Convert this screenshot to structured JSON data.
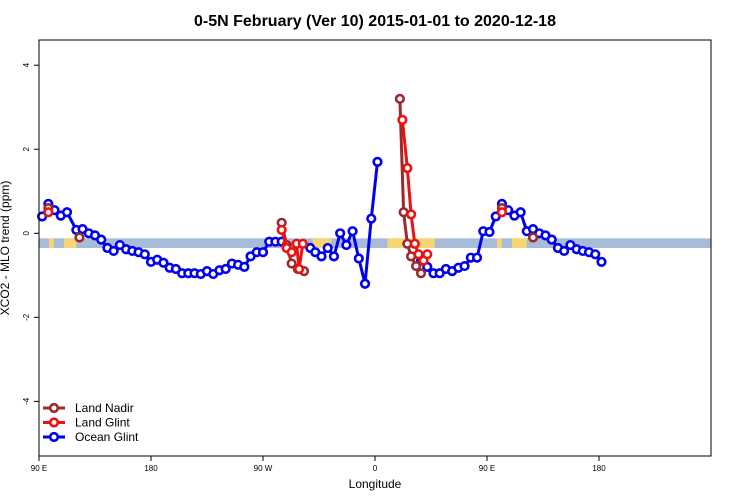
{
  "chart_data": {
    "type": "line",
    "title": "0-5N February (Ver 10)   2015-01-01 to 2020-12-18",
    "xlabel": "Longitude",
    "ylabel": "XCO2 - MLO trend (ppm)",
    "xlim": [
      0,
      540
    ],
    "ylim": [
      -5.3,
      4.6
    ],
    "x_ticks": [
      {
        "value": 0,
        "label": "90 E"
      },
      {
        "value": 90,
        "label": "180"
      },
      {
        "value": 180,
        "label": "90 W"
      },
      {
        "value": 270,
        "label": "0"
      },
      {
        "value": 360,
        "label": "90 E"
      },
      {
        "value": 450,
        "label": "180"
      }
    ],
    "y_ticks": [
      {
        "value": -4,
        "label": "-4"
      },
      {
        "value": -2,
        "label": "-2"
      },
      {
        "value": 0,
        "label": "0"
      },
      {
        "value": 2,
        "label": "2"
      },
      {
        "value": 4,
        "label": "4"
      }
    ],
    "band": {
      "y_range": [
        -0.35,
        -0.12
      ],
      "base_color": "#a7bcd8",
      "land_color": "#f7d573",
      "land_segments": [
        [
          8,
          12
        ],
        [
          20,
          30
        ],
        [
          220,
          235
        ],
        [
          280,
          300
        ],
        [
          300,
          318
        ],
        [
          368,
          372
        ],
        [
          380,
          392
        ]
      ]
    },
    "legend": {
      "position": "bottom-left",
      "entries": [
        {
          "label": "Land Nadir",
          "color": "#9b2a2d"
        },
        {
          "label": "Land Glint",
          "color": "#ee1111"
        },
        {
          "label": "Ocean Glint",
          "color": "#0000ee"
        }
      ]
    },
    "series": [
      {
        "name": "Ocean Glint",
        "color": "#0000ee",
        "segments": [
          [
            [
              2.5,
              0.4
            ],
            [
              7.5,
              0.7
            ],
            [
              12.5,
              0.55
            ],
            [
              17.5,
              0.42
            ],
            [
              22.5,
              0.5
            ],
            [
              30,
              0.08
            ],
            [
              35,
              0.1
            ],
            [
              40,
              0.0
            ],
            [
              45,
              -0.05
            ],
            [
              50,
              -0.15
            ],
            [
              55,
              -0.35
            ],
            [
              60,
              -0.42
            ],
            [
              65,
              -0.28
            ],
            [
              70,
              -0.38
            ],
            [
              75,
              -0.42
            ],
            [
              80,
              -0.45
            ],
            [
              85,
              -0.5
            ],
            [
              90,
              -0.68
            ],
            [
              95,
              -0.63
            ],
            [
              100,
              -0.7
            ],
            [
              105,
              -0.82
            ],
            [
              110,
              -0.85
            ],
            [
              115,
              -0.95
            ],
            [
              120,
              -0.95
            ],
            [
              125,
              -0.95
            ],
            [
              130,
              -0.97
            ],
            [
              135,
              -0.9
            ],
            [
              140,
              -0.97
            ],
            [
              145,
              -0.88
            ],
            [
              150,
              -0.85
            ],
            [
              155,
              -0.72
            ],
            [
              160,
              -0.75
            ],
            [
              165,
              -0.8
            ],
            [
              170,
              -0.55
            ],
            [
              175,
              -0.45
            ],
            [
              180,
              -0.45
            ],
            [
              185,
              -0.2
            ],
            [
              190,
              -0.2
            ],
            [
              195,
              -0.2
            ]
          ],
          [
            [
              218,
              -0.35
            ],
            [
              222,
              -0.45
            ],
            [
              227,
              -0.55
            ],
            [
              232,
              -0.35
            ],
            [
              237,
              -0.55
            ],
            [
              242,
              0.0
            ],
            [
              247,
              -0.28
            ],
            [
              252,
              0.05
            ],
            [
              257,
              -0.6
            ],
            [
              262,
              -1.2
            ],
            [
              267,
              0.35
            ],
            [
              272,
              1.7
            ]
          ],
          [
            [
              307,
              -0.65
            ],
            [
              312,
              -0.8
            ],
            [
              317,
              -0.95
            ],
            [
              322,
              -0.95
            ],
            [
              327,
              -0.85
            ],
            [
              332,
              -0.9
            ],
            [
              337,
              -0.82
            ],
            [
              342,
              -0.78
            ],
            [
              347,
              -0.58
            ],
            [
              352,
              -0.58
            ],
            [
              357,
              0.05
            ],
            [
              362,
              0.03
            ],
            [
              367,
              0.4
            ],
            [
              372,
              0.7
            ],
            [
              377,
              0.55
            ],
            [
              382,
              0.42
            ],
            [
              387,
              0.5
            ],
            [
              392,
              0.05
            ],
            [
              397,
              0.1
            ],
            [
              402,
              0.0
            ],
            [
              407,
              -0.05
            ],
            [
              412,
              -0.15
            ],
            [
              417,
              -0.35
            ],
            [
              422,
              -0.42
            ],
            [
              427,
              -0.28
            ],
            [
              432,
              -0.38
            ],
            [
              437,
              -0.42
            ],
            [
              442,
              -0.45
            ],
            [
              447,
              -0.5
            ],
            [
              452,
              -0.68
            ]
          ]
        ]
      },
      {
        "name": "Land Nadir",
        "color": "#9b2a2d",
        "segments": [
          [
            [
              7.5,
              0.6
            ]
          ],
          [
            [
              32.5,
              -0.1
            ]
          ],
          [
            [
              195,
              0.25
            ],
            [
              199,
              -0.28
            ],
            [
              203,
              -0.72
            ],
            [
              208,
              -0.85
            ],
            [
              213,
              -0.9
            ]
          ],
          [
            [
              290,
              3.2
            ],
            [
              293,
              0.5
            ],
            [
              296,
              -0.25
            ],
            [
              299,
              -0.55
            ],
            [
              303,
              -0.78
            ],
            [
              307,
              -0.95
            ]
          ],
          [
            [
              372,
              0.6
            ]
          ],
          [
            [
              397,
              -0.1
            ]
          ]
        ]
      },
      {
        "name": "Land Glint",
        "color": "#ee1111",
        "segments": [
          [
            [
              7.5,
              0.5
            ]
          ],
          [
            [
              195,
              0.08
            ],
            [
              199,
              -0.35
            ],
            [
              203,
              -0.45
            ],
            [
              207,
              -0.25
            ],
            [
              209,
              -0.85
            ],
            [
              212,
              -0.25
            ]
          ],
          [
            [
              292,
              2.7
            ],
            [
              296,
              1.55
            ],
            [
              299,
              0.45
            ],
            [
              302,
              -0.25
            ],
            [
              305,
              -0.5
            ],
            [
              309,
              -0.65
            ],
            [
              312,
              -0.5
            ]
          ],
          [
            [
              372,
              0.5
            ]
          ]
        ]
      }
    ]
  }
}
